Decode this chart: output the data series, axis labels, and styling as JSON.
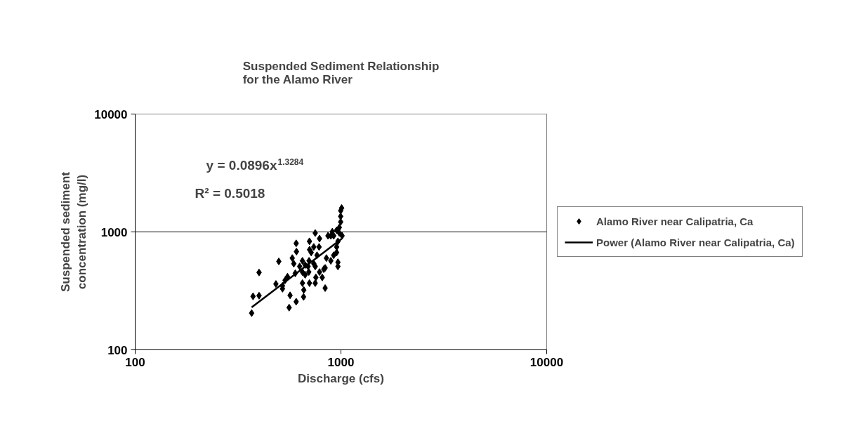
{
  "chart_data": {
    "type": "scatter",
    "title": "Suspended Sediment Relationship\nfor the Alamo River",
    "xlabel": "Discharge (cfs)",
    "ylabel": "Suspended sediment\nconcentration (mg/l)",
    "annotations": [
      "y = 0.0896x$^{1.3284}$",
      "R² = 0.5018"
    ],
    "log": "xy",
    "xlim": [
      100,
      10000
    ],
    "ylim": [
      100,
      10000
    ],
    "xticks": [
      100,
      1000,
      10000
    ],
    "yticks": [
      100,
      1000,
      10000
    ],
    "grid": "y",
    "legend": "right",
    "marker": "diamond",
    "series": [
      {
        "name": "Alamo River near Calipatria, Ca",
        "color": "#000000",
        "x": [
          368,
          374,
          400,
          400,
          499,
          483,
          520,
          550,
          566,
          560,
          606,
          606,
          608,
          580,
          590,
          600,
          658,
          660,
          650,
          670,
          703,
          704,
          700,
          698,
          703,
          750,
          787,
          783,
          765,
          750,
          755,
          750,
          811,
          838,
          825,
          850,
          893,
          922,
          953,
          967,
          967,
          953,
          967,
          922,
          908,
          953,
          982,
          997,
          997,
          997,
          1008,
          1013,
          982,
          893,
          865,
          738,
          717,
          650,
          630,
          692,
          787,
          838,
          670,
          535,
          520,
          738,
          650
        ],
        "values": [
          205,
          284,
          288,
          453,
          562,
          362,
          330,
          417,
          290,
          228,
          256,
          800,
          681,
          600,
          538,
          446,
          281,
          322,
          368,
          524,
          832,
          707,
          569,
          457,
          368,
          979,
          878,
          746,
          634,
          510,
          411,
          368,
          411,
          334,
          483,
          600,
          569,
          634,
          669,
          510,
          553,
          746,
          832,
          927,
          1005,
          1033,
          1091,
          1216,
          1355,
          1512,
          1595,
          927,
          979,
          927,
          927,
          746,
          669,
          569,
          510,
          510,
          457,
          495,
          433,
          389,
          349,
          538,
          457
        ]
      },
      {
        "name": "Power (Alamo River near Calipatria, Ca)",
        "type": "line",
        "marker": "none",
        "color": "#000000",
        "x": [
          368,
          1008
        ],
        "values": [
          229,
          876
        ]
      }
    ]
  }
}
